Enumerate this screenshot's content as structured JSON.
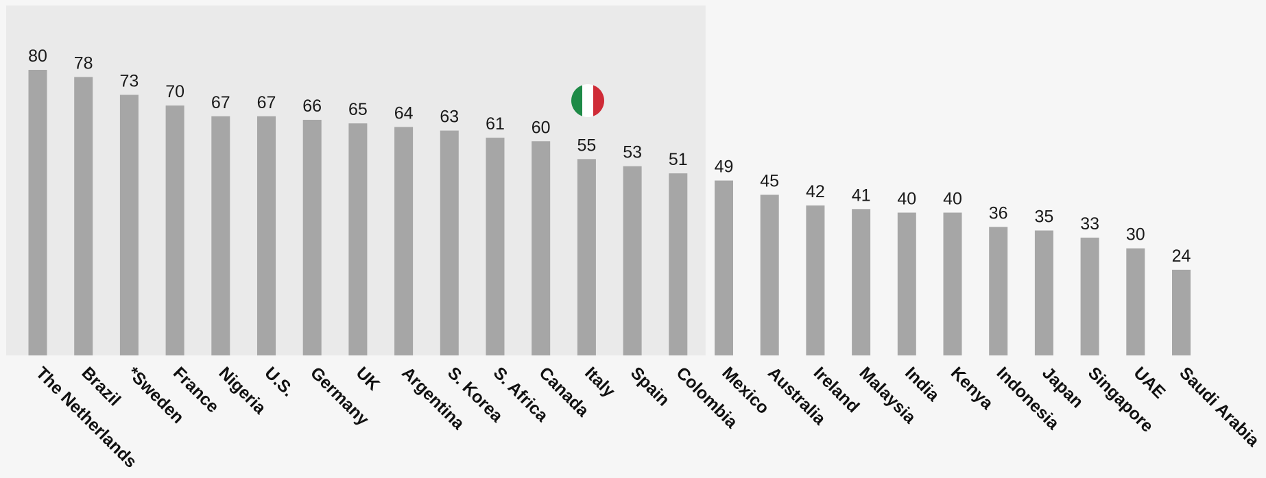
{
  "chart_data": {
    "type": "bar",
    "categories": [
      "The Netherlands",
      "Brazil",
      "*Sweden",
      "France",
      "Nigeria",
      "U.S.",
      "Germany",
      "UK",
      "Argentina",
      "S. Korea",
      "S. Africa",
      "Canada",
      "Italy",
      "Spain",
      "Colombia",
      "Mexico",
      "Australia",
      "Ireland",
      "Malaysia",
      "India",
      "Kenya",
      "Indonesia",
      "Japan",
      "Singapore",
      "UAE",
      "Saudi Arabia"
    ],
    "values": [
      80,
      78,
      73,
      70,
      67,
      67,
      66,
      65,
      64,
      63,
      61,
      60,
      55,
      53,
      51,
      49,
      45,
      42,
      41,
      40,
      40,
      36,
      35,
      33,
      30,
      24
    ],
    "title": "",
    "xlabel": "",
    "ylabel": "",
    "ylim": [
      0,
      80
    ],
    "grid": false,
    "legend": "none",
    "highlighted_region": {
      "from": "The Netherlands",
      "to": "Colombia",
      "color": "#eaeaea"
    },
    "highlighted_category": "Italy",
    "annotations": [
      {
        "category": "Italy",
        "icon": "italy-flag-icon"
      }
    ],
    "colors": {
      "bar": "#a6a6a6",
      "background": "#f6f6f6",
      "label": "#111111"
    }
  }
}
